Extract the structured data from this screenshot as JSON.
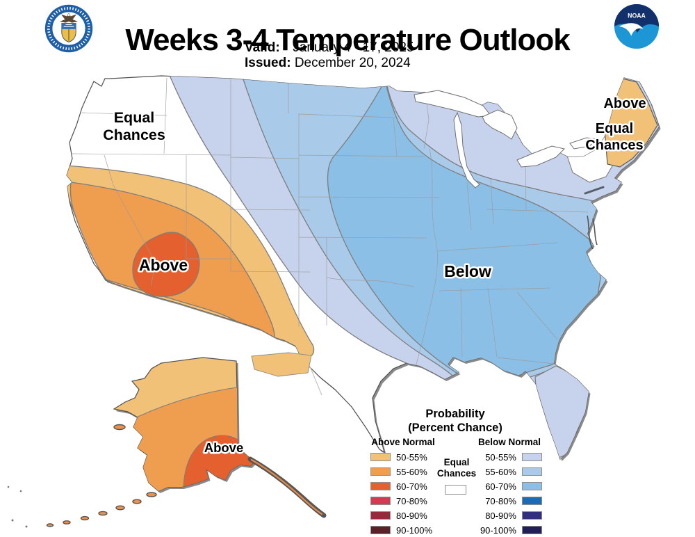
{
  "header": {
    "title": "Weeks 3-4 Temperature Outlook",
    "valid_label": "Valid:",
    "valid_value": "January 4 - 17, 2025",
    "issued_label": "Issued:",
    "issued_value": "December 20, 2024"
  },
  "logos": {
    "left_alt": "U.S. Department of Commerce seal",
    "right_alt": "NOAA logo",
    "noaa_label": "NOAA"
  },
  "map_labels": {
    "northwest_equal_line1": "Equal",
    "northwest_equal_line2": "Chances",
    "southwest_above": "Above",
    "central_below": "Below",
    "maine_above": "Above",
    "northeast_equal_line1": "Equal",
    "northeast_equal_line2": "Chances",
    "alaska_above": "Above"
  },
  "legend": {
    "title_line1": "Probability",
    "title_line2": "(Percent Chance)",
    "above_header": "Above Normal",
    "below_header": "Below Normal",
    "equal_line1": "Equal",
    "equal_line2": "Chances",
    "ranges": [
      "50-55%",
      "55-60%",
      "60-70%",
      "70-80%",
      "80-90%",
      "90-100%"
    ],
    "above_colors": [
      "#F0C177",
      "#EF9D4F",
      "#E4602F",
      "#D23B52",
      "#98293C",
      "#5A2228"
    ],
    "below_colors": [
      "#C7D3ED",
      "#AACAE9",
      "#8BBFE5",
      "#1A6CB4",
      "#302E7D",
      "#221E56"
    ],
    "equal_color": "#FFFFFF"
  }
}
